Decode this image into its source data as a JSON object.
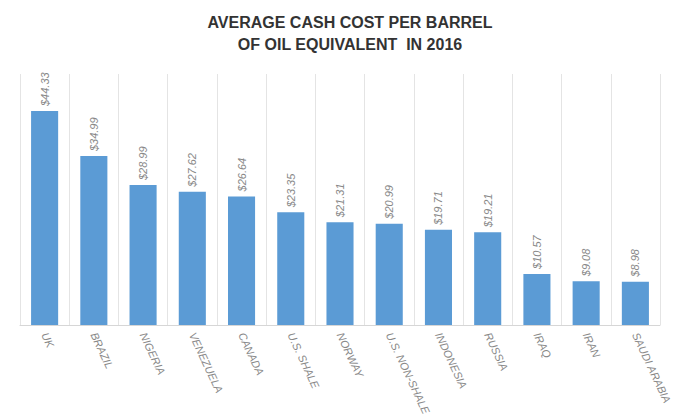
{
  "chart_data": {
    "type": "bar",
    "title": "AVERAGE CASH COST PER BARREL\nOF OIL EQUIVALENT  IN 2016",
    "categories": [
      "UK",
      "BRAZIL",
      "NIGERIA",
      "VENEZUELA",
      "CANADA",
      "U.S. SHALE",
      "NORWAY",
      "U.S. NON-SHALE",
      "INDONESIA",
      "RUSSIA",
      "IRAQ",
      "IRAN",
      "SAUDI ARABIA"
    ],
    "values": [
      44.33,
      34.99,
      28.99,
      27.62,
      26.64,
      23.35,
      21.31,
      20.99,
      19.71,
      19.21,
      10.57,
      9.08,
      8.98
    ],
    "value_labels": [
      "$44.33",
      "$34.99",
      "$28.99",
      "$27.62",
      "$26.64",
      "$23.35",
      "$21.31",
      "$20.99",
      "$19.71",
      "$19.21",
      "$10.57",
      "$9.08",
      "$8.98"
    ],
    "data_labels": true,
    "color": "#5B9BD5",
    "ylim": [
      0,
      52
    ],
    "tick_labels": "x",
    "grid": true
  }
}
